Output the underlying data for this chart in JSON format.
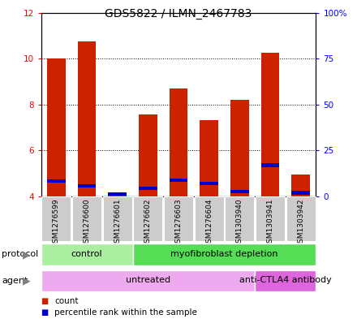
{
  "title": "GDS5822 / ILMN_2467783",
  "samples": [
    "GSM1276599",
    "GSM1276600",
    "GSM1276601",
    "GSM1276602",
    "GSM1276603",
    "GSM1276604",
    "GSM1303940",
    "GSM1303941",
    "GSM1303942"
  ],
  "count_values": [
    10.0,
    10.75,
    4.1,
    7.55,
    8.7,
    7.3,
    8.2,
    10.25,
    4.95
  ],
  "percentile_values": [
    4.65,
    4.45,
    4.1,
    4.35,
    4.7,
    4.55,
    4.2,
    5.35,
    4.15
  ],
  "ylim": [
    4.0,
    12.0
  ],
  "yticks_left": [
    4,
    6,
    8,
    10,
    12
  ],
  "right_tick_positions": [
    4,
    6,
    8,
    10,
    12
  ],
  "right_tick_labels": [
    "0",
    "25",
    "50",
    "75",
    "100%"
  ],
  "bar_color": "#cc2200",
  "percentile_color": "#0000cc",
  "bar_width": 0.6,
  "protocol_groups": [
    {
      "label": "control",
      "start": 0,
      "end": 3,
      "color": "#aaeea0"
    },
    {
      "label": "myofibroblast depletion",
      "start": 3,
      "end": 9,
      "color": "#55dd55"
    }
  ],
  "agent_groups": [
    {
      "label": "untreated",
      "start": 0,
      "end": 7,
      "color": "#eeaaee"
    },
    {
      "label": "anti-CTLA4 antibody",
      "start": 7,
      "end": 9,
      "color": "#dd66dd"
    }
  ],
  "protocol_label": "protocol",
  "agent_label": "agent",
  "legend_count_label": "count",
  "legend_percentile_label": "percentile rank within the sample",
  "title_fontsize": 10,
  "tick_fontsize": 7.5,
  "label_fontsize": 8,
  "sample_fontsize": 6.5
}
